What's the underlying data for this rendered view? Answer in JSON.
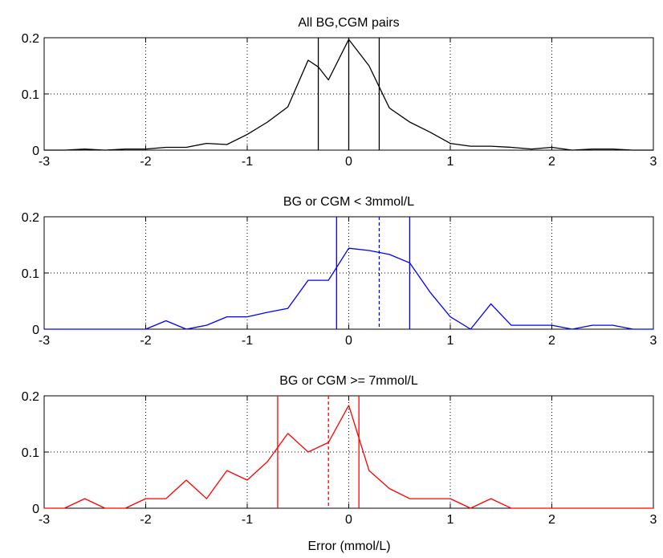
{
  "figure": {
    "xlabel": "Error (mmol/L)"
  },
  "chart_data": [
    {
      "type": "line",
      "title": "All BG,CGM pairs",
      "xlabel": "",
      "ylabel": "",
      "xlim": [
        -3,
        3
      ],
      "ylim": [
        0,
        0.2
      ],
      "xticks": [
        -3,
        -2,
        -1,
        0,
        1,
        2,
        3
      ],
      "yticks": [
        0,
        0.1,
        0.2
      ],
      "grid": true,
      "color": "#000000",
      "series": [
        {
          "x": [
            -3,
            -2.8,
            -2.6,
            -2.4,
            -2.2,
            -2,
            -1.8,
            -1.6,
            -1.4,
            -1.2,
            -1,
            -0.8,
            -0.6,
            -0.4,
            -0.3,
            -0.2,
            0,
            0.2,
            0.4,
            0.6,
            0.8,
            1,
            1.2,
            1.4,
            1.6,
            1.8,
            2,
            2.2,
            2.4,
            2.6,
            2.8,
            3
          ],
          "y": [
            0,
            0,
            0.002,
            0,
            0.002,
            0.002,
            0.005,
            0.005,
            0.012,
            0.01,
            0.028,
            0.05,
            0.077,
            0.16,
            0.148,
            0.125,
            0.197,
            0.15,
            0.075,
            0.05,
            0.032,
            0.012,
            0.007,
            0.007,
            0.005,
            0.002,
            0.005,
            0,
            0.002,
            0.002,
            0,
            0
          ]
        }
      ],
      "vlines": [
        {
          "x": -0.3,
          "style": "solid"
        },
        {
          "x": 0,
          "style": "solid"
        },
        {
          "x": 0.3,
          "style": "solid"
        }
      ]
    },
    {
      "type": "line",
      "title": "BG or CGM < 3mmol/L",
      "xlabel": "",
      "ylabel": "",
      "xlim": [
        -3,
        3
      ],
      "ylim": [
        0,
        0.2
      ],
      "xticks": [
        -3,
        -2,
        -1,
        0,
        1,
        2,
        3
      ],
      "yticks": [
        0,
        0.1,
        0.2
      ],
      "grid": true,
      "color": "#0000ff",
      "series": [
        {
          "x": [
            -3,
            -2.8,
            -2.6,
            -2.4,
            -2.2,
            -2,
            -1.8,
            -1.6,
            -1.4,
            -1.2,
            -1,
            -0.8,
            -0.6,
            -0.4,
            -0.2,
            0,
            0.2,
            0.4,
            0.6,
            0.8,
            1,
            1.2,
            1.4,
            1.6,
            1.8,
            2,
            2.2,
            2.4,
            2.6,
            2.8,
            3
          ],
          "y": [
            0,
            0,
            0,
            0,
            0,
            0,
            0.015,
            0,
            0.007,
            0.022,
            0.022,
            0.03,
            0.037,
            0.087,
            0.087,
            0.144,
            0.14,
            0.133,
            0.118,
            0.066,
            0.022,
            0,
            0.045,
            0.007,
            0.007,
            0.007,
            0,
            0.007,
            0.007,
            0,
            0
          ]
        }
      ],
      "vlines": [
        {
          "x": -0.12,
          "style": "solid"
        },
        {
          "x": 0.3,
          "style": "dashed"
        },
        {
          "x": 0.6,
          "style": "solid"
        }
      ]
    },
    {
      "type": "line",
      "title": "BG or CGM >=  7mmol/L",
      "xlabel": "Error (mmol/L)",
      "ylabel": "",
      "xlim": [
        -3,
        3
      ],
      "ylim": [
        0,
        0.2
      ],
      "xticks": [
        -3,
        -2,
        -1,
        0,
        1,
        2,
        3
      ],
      "yticks": [
        0,
        0.1,
        0.2
      ],
      "grid": true,
      "color": "#ff0000",
      "series": [
        {
          "x": [
            -3,
            -2.8,
            -2.6,
            -2.4,
            -2.2,
            -2,
            -1.8,
            -1.6,
            -1.4,
            -1.2,
            -1,
            -0.8,
            -0.6,
            -0.4,
            -0.2,
            0,
            0.2,
            0.4,
            0.6,
            0.8,
            1,
            1.2,
            1.4,
            1.6,
            1.8,
            2,
            2.2,
            2.4,
            2.6,
            2.8,
            3
          ],
          "y": [
            0,
            0,
            0.017,
            0,
            0,
            0.017,
            0.017,
            0.05,
            0.017,
            0.067,
            0.05,
            0.083,
            0.133,
            0.1,
            0.117,
            0.183,
            0.067,
            0.035,
            0.017,
            0.017,
            0.017,
            0,
            0.017,
            0,
            0,
            0,
            0,
            0,
            0,
            0,
            0
          ]
        }
      ],
      "vlines": [
        {
          "x": -0.7,
          "style": "solid"
        },
        {
          "x": -0.2,
          "style": "dashed"
        },
        {
          "x": 0.1,
          "style": "solid"
        }
      ]
    }
  ]
}
